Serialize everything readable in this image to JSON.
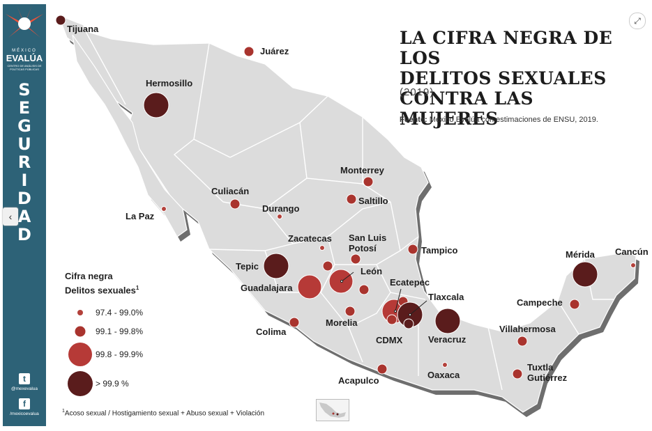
{
  "title_lines": [
    "LA CIFRA NEGRA DE LOS",
    "DELITOS SEXUALES",
    "CONTRA LAS MUJERES"
  ],
  "year": "(2019)",
  "source": {
    "label": "Fuente:",
    "text": "México Evalúa con estimaciones de ENSU, 2019."
  },
  "sidebar": {
    "logo_line1": "MÉXICO",
    "logo_line2": "EVALÚA",
    "logo_line3": "CENTRO DE ANÁLISIS DE POLÍTICAS PÚBLICAS",
    "section_letters": [
      "S",
      "E",
      "G",
      "U",
      "R",
      "I",
      "D",
      "A",
      "D"
    ],
    "twitter_handle": "@mexevalua",
    "facebook_handle": "/mexicoevalua"
  },
  "legend": {
    "title_line1": "Cifra negra",
    "title_line2": "Delitos sexuales",
    "title_sup": "1",
    "items": [
      {
        "label": "97.4 - 99.0%",
        "color": "#b3413b"
      },
      {
        "label": "99.1 - 99.8%",
        "color": "#a9342e"
      },
      {
        "label": "99.8 - 99.9%",
        "color": "#b63a37"
      },
      {
        "label": "> 99.9 %",
        "color": "#5a1c1c"
      }
    ]
  },
  "footnote": {
    "sup": "1",
    "text": "Acoso sexual / Hostigamiento sexual + Abuso sexual + Violación"
  },
  "colors": {
    "sidebar": "#2d6277",
    "map_land": "#dcdcdc",
    "map_shadow": "#6b6b6b",
    "map_border": "#ffffff"
  },
  "cities": [
    {
      "name": "Tijuana",
      "category": 4
    },
    {
      "name": "Juárez",
      "category": 2
    },
    {
      "name": "Hermosillo",
      "category": 4
    },
    {
      "name": "La Paz",
      "category": 1
    },
    {
      "name": "Culiacán",
      "category": 2
    },
    {
      "name": "Durango",
      "category": 1
    },
    {
      "name": "Monterrey",
      "category": 2
    },
    {
      "name": "Saltillo",
      "category": 2
    },
    {
      "name": "Zacatecas",
      "category": 1
    },
    {
      "name": "San Luis Potosí",
      "category": 2
    },
    {
      "name": "Tampico",
      "category": 2
    },
    {
      "name": "Tepic",
      "category": 4
    },
    {
      "name": "Guadalajara",
      "category": 3
    },
    {
      "name": "León",
      "category": 3
    },
    {
      "name": "Colima",
      "category": 2
    },
    {
      "name": "Morelia",
      "category": 2
    },
    {
      "name": "Ecatepec",
      "category": 2
    },
    {
      "name": "Tlaxcala",
      "category": 4
    },
    {
      "name": "CDMX",
      "category": 3
    },
    {
      "name": "Veracruz",
      "category": 4
    },
    {
      "name": "Acapulco",
      "category": 2
    },
    {
      "name": "Oaxaca",
      "category": 1
    },
    {
      "name": "Mérida",
      "category": 4
    },
    {
      "name": "Cancún",
      "category": 1
    },
    {
      "name": "Campeche",
      "category": 2
    },
    {
      "name": "Villahermosa",
      "category": 2
    },
    {
      "name": "Tuxtla Gutiérrez",
      "category": 2
    }
  ]
}
